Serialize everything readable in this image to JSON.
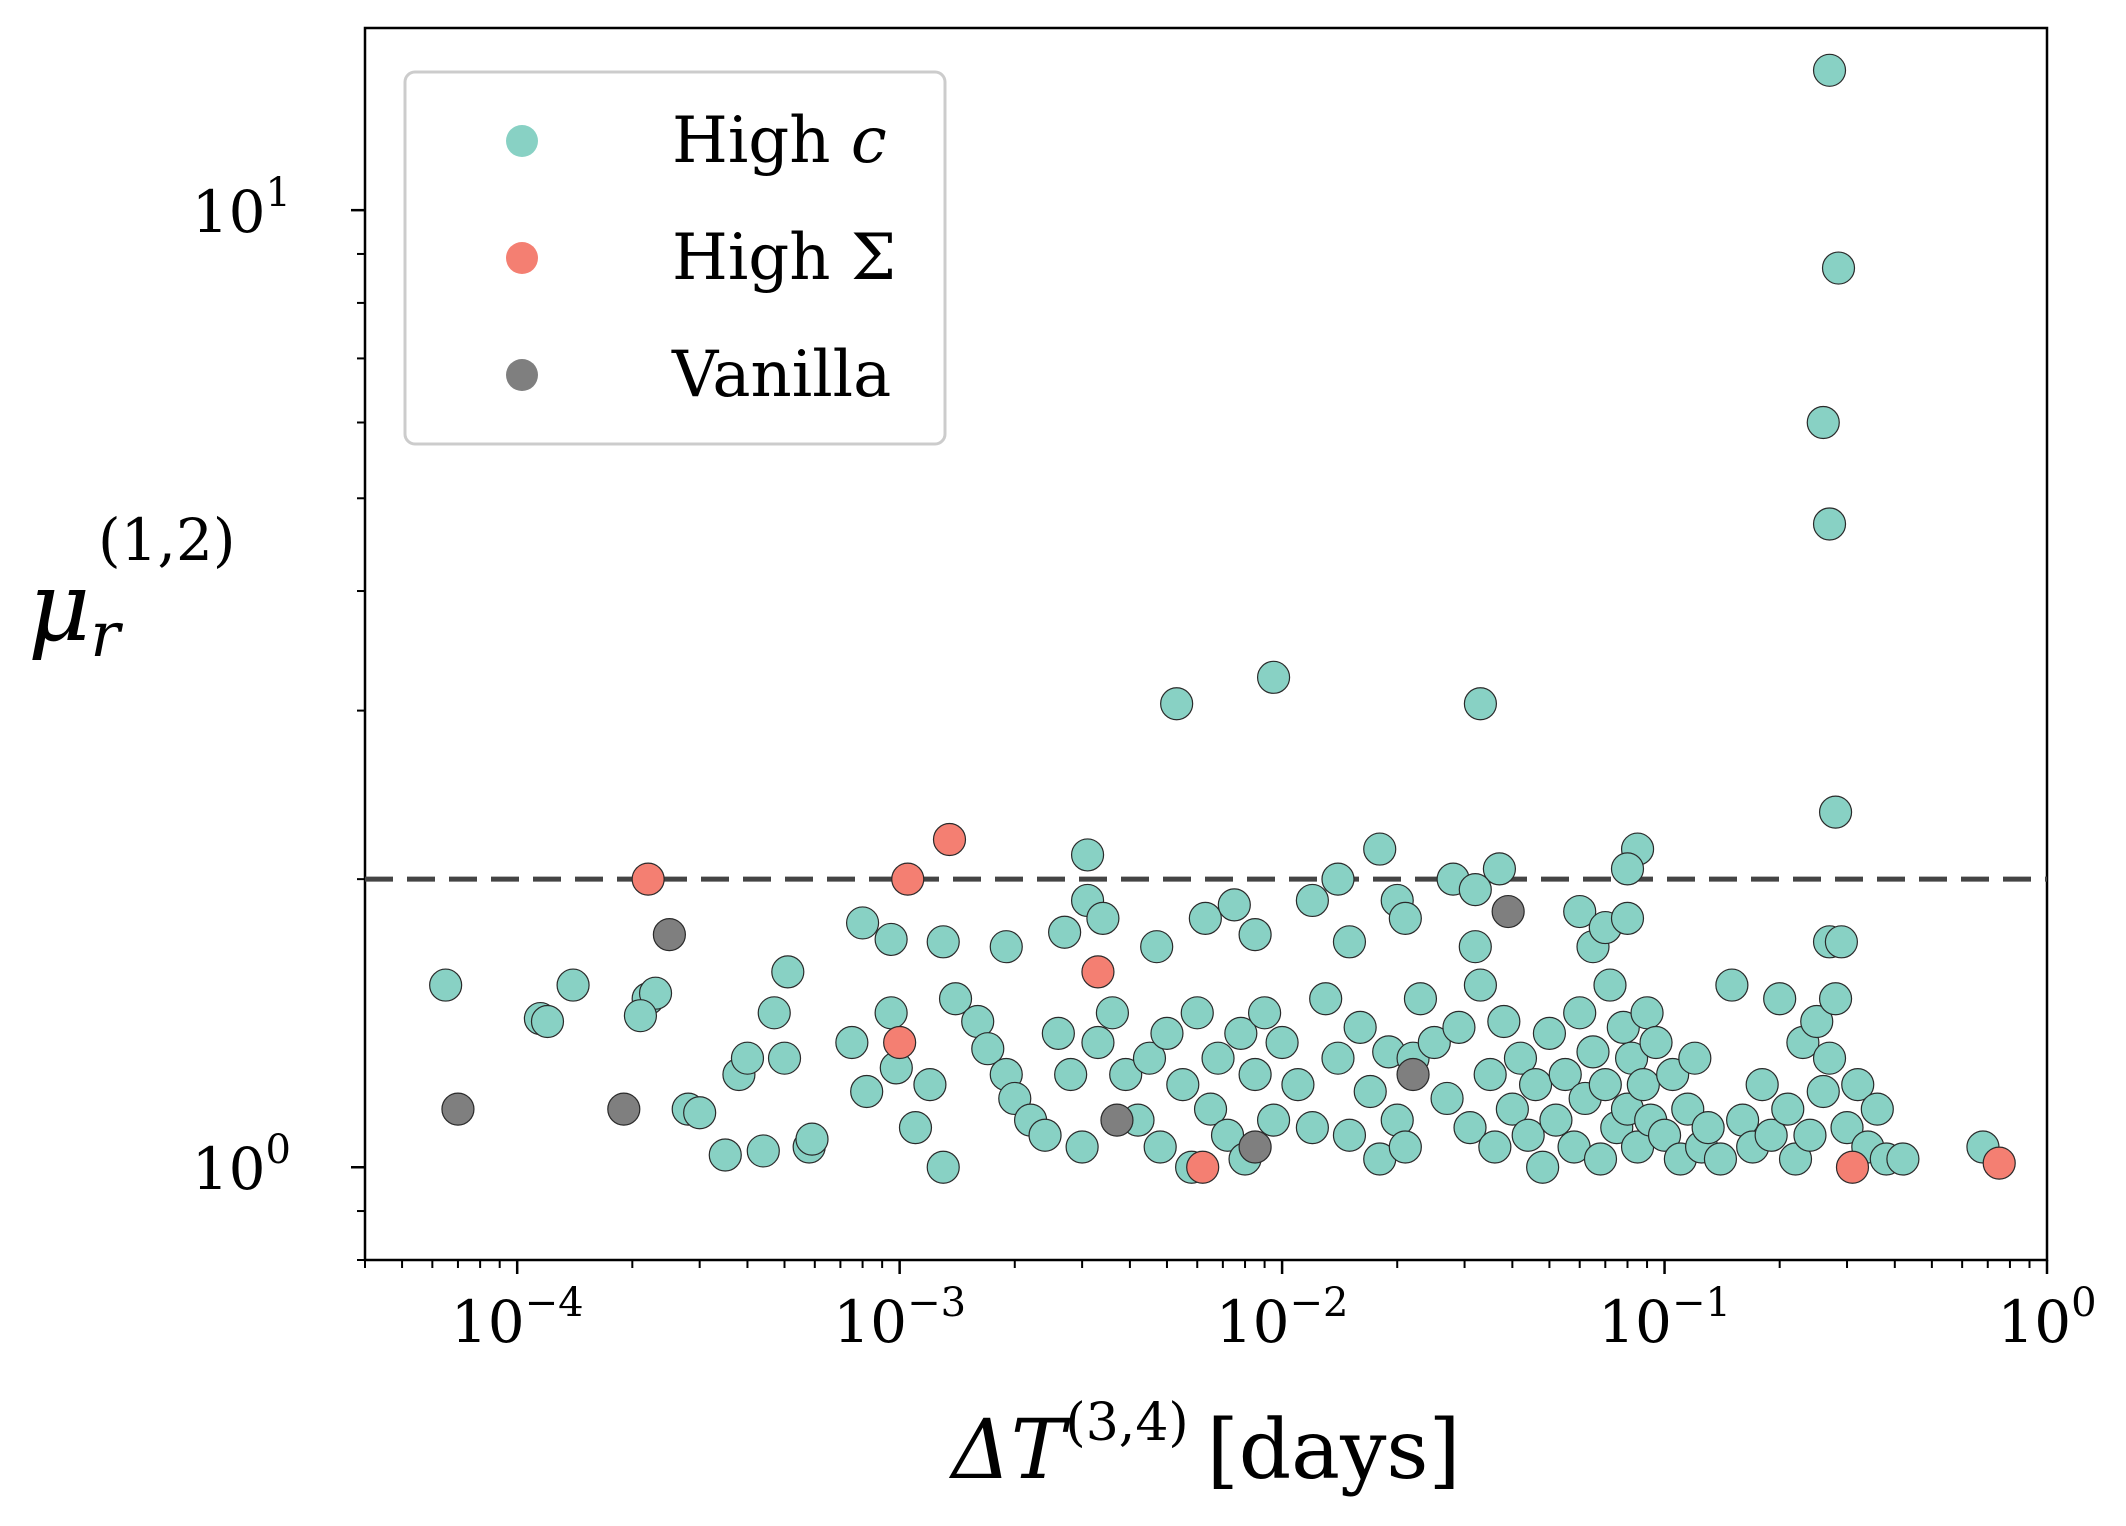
{
  "chart_data": {
    "type": "scatter",
    "x_scale": "log",
    "y_scale": "log",
    "xlim": [
      4e-05,
      1.0
    ],
    "ylim": [
      0.8,
      15.5
    ],
    "x_ticks": [
      {
        "value": 0.0001,
        "base": "10",
        "exp": "−4"
      },
      {
        "value": 0.001,
        "base": "10",
        "exp": "−3"
      },
      {
        "value": 0.01,
        "base": "10",
        "exp": "−2"
      },
      {
        "value": 0.1,
        "base": "10",
        "exp": "−1"
      },
      {
        "value": 1.0,
        "base": "10",
        "exp": "0"
      }
    ],
    "y_ticks": [
      {
        "value": 1.0,
        "base": "10",
        "exp": "0"
      },
      {
        "value": 10.0,
        "base": "10",
        "exp": "1"
      }
    ],
    "xlabel": {
      "prefix": "ΔT",
      "sup": "(3,4)",
      "unit": "[days]"
    },
    "ylabel": {
      "main": "μ",
      "sub": "r",
      "sup": "(1,2)"
    },
    "threshold": {
      "y": 2.0,
      "style": "dashed",
      "color": "#444444"
    },
    "legend": {
      "position": "top-left",
      "entries": [
        {
          "label": "High ",
          "italic_suffix": "c",
          "color": "#88d1c4"
        },
        {
          "label": "High Σ",
          "italic_suffix": "",
          "color": "#f47f72"
        },
        {
          "label": "Vanilla",
          "italic_suffix": "",
          "color": "#7f7f7f"
        }
      ]
    },
    "series": [
      {
        "name": "High c",
        "color": "#88d1c4",
        "points": [
          [
            0.27,
            14.0
          ],
          [
            0.285,
            8.7
          ],
          [
            0.26,
            6.0
          ],
          [
            0.27,
            4.7
          ],
          [
            0.28,
            2.35
          ],
          [
            0.0053,
            3.05
          ],
          [
            0.0095,
            3.25
          ],
          [
            0.033,
            3.05
          ],
          [
            0.0031,
            2.12
          ],
          [
            0.018,
            2.15
          ],
          [
            0.037,
            2.05
          ],
          [
            0.085,
            2.15
          ],
          [
            0.08,
            2.05
          ],
          [
            0.014,
            2.0
          ],
          [
            0.028,
            2.0
          ],
          [
            0.032,
            1.95
          ],
          [
            0.02,
            1.9
          ],
          [
            0.06,
            1.85
          ],
          [
            0.0008,
            1.8
          ],
          [
            0.00095,
            1.73
          ],
          [
            0.0013,
            1.72
          ],
          [
            0.0019,
            1.7
          ],
          [
            0.0027,
            1.76
          ],
          [
            0.0031,
            1.9
          ],
          [
            0.0034,
            1.82
          ],
          [
            0.0047,
            1.7
          ],
          [
            0.0063,
            1.82
          ],
          [
            0.0075,
            1.88
          ],
          [
            0.0085,
            1.75
          ],
          [
            0.012,
            1.9
          ],
          [
            0.015,
            1.72
          ],
          [
            0.021,
            1.82
          ],
          [
            0.032,
            1.7
          ],
          [
            0.065,
            1.7
          ],
          [
            0.07,
            1.78
          ],
          [
            0.08,
            1.82
          ],
          [
            0.27,
            1.72
          ],
          [
            0.29,
            1.72
          ],
          [
            6.5e-05,
            1.55
          ],
          [
            0.000115,
            1.43
          ],
          [
            0.00012,
            1.42
          ],
          [
            0.00014,
            1.55
          ],
          [
            0.00022,
            1.5
          ],
          [
            0.00023,
            1.52
          ],
          [
            0.00021,
            1.44
          ],
          [
            0.00028,
            1.15
          ],
          [
            0.0003,
            1.14
          ],
          [
            0.00035,
            1.03
          ],
          [
            0.00038,
            1.25
          ],
          [
            0.0004,
            1.3
          ],
          [
            0.00044,
            1.04
          ],
          [
            0.00047,
            1.45
          ],
          [
            0.0005,
            1.3
          ],
          [
            0.00051,
            1.6
          ],
          [
            0.00058,
            1.05
          ],
          [
            0.00059,
            1.07
          ],
          [
            0.00075,
            1.35
          ],
          [
            0.00082,
            1.2
          ],
          [
            0.00095,
            1.45
          ],
          [
            0.00098,
            1.27
          ],
          [
            0.0011,
            1.1
          ],
          [
            0.0012,
            1.22
          ],
          [
            0.0013,
            1.0
          ],
          [
            0.0014,
            1.5
          ],
          [
            0.0016,
            1.42
          ],
          [
            0.0017,
            1.33
          ],
          [
            0.0019,
            1.25
          ],
          [
            0.002,
            1.18
          ],
          [
            0.0022,
            1.12
          ],
          [
            0.0024,
            1.08
          ],
          [
            0.0026,
            1.38
          ],
          [
            0.0028,
            1.25
          ],
          [
            0.003,
            1.05
          ],
          [
            0.0033,
            1.35
          ],
          [
            0.0036,
            1.45
          ],
          [
            0.0039,
            1.25
          ],
          [
            0.0042,
            1.12
          ],
          [
            0.0045,
            1.3
          ],
          [
            0.0048,
            1.05
          ],
          [
            0.005,
            1.38
          ],
          [
            0.0055,
            1.22
          ],
          [
            0.0058,
            1.0
          ],
          [
            0.006,
            1.45
          ],
          [
            0.0065,
            1.15
          ],
          [
            0.0068,
            1.3
          ],
          [
            0.0072,
            1.08
          ],
          [
            0.0078,
            1.38
          ],
          [
            0.008,
            1.02
          ],
          [
            0.0085,
            1.25
          ],
          [
            0.009,
            1.45
          ],
          [
            0.0095,
            1.12
          ],
          [
            0.01,
            1.35
          ],
          [
            0.011,
            1.22
          ],
          [
            0.012,
            1.1
          ],
          [
            0.013,
            1.5
          ],
          [
            0.014,
            1.3
          ],
          [
            0.015,
            1.08
          ],
          [
            0.016,
            1.4
          ],
          [
            0.017,
            1.2
          ],
          [
            0.018,
            1.02
          ],
          [
            0.019,
            1.32
          ],
          [
            0.02,
            1.12
          ],
          [
            0.021,
            1.05
          ],
          [
            0.022,
            1.3
          ],
          [
            0.023,
            1.5
          ],
          [
            0.025,
            1.35
          ],
          [
            0.027,
            1.18
          ],
          [
            0.029,
            1.4
          ],
          [
            0.031,
            1.1
          ],
          [
            0.033,
            1.55
          ],
          [
            0.035,
            1.25
          ],
          [
            0.036,
            1.05
          ],
          [
            0.038,
            1.42
          ],
          [
            0.04,
            1.15
          ],
          [
            0.042,
            1.3
          ],
          [
            0.044,
            1.08
          ],
          [
            0.046,
            1.22
          ],
          [
            0.048,
            1.0
          ],
          [
            0.05,
            1.38
          ],
          [
            0.052,
            1.12
          ],
          [
            0.055,
            1.25
          ],
          [
            0.058,
            1.05
          ],
          [
            0.06,
            1.45
          ],
          [
            0.062,
            1.18
          ],
          [
            0.065,
            1.32
          ],
          [
            0.068,
            1.02
          ],
          [
            0.07,
            1.22
          ],
          [
            0.072,
            1.55
          ],
          [
            0.075,
            1.1
          ],
          [
            0.078,
            1.4
          ],
          [
            0.08,
            1.15
          ],
          [
            0.082,
            1.3
          ],
          [
            0.085,
            1.05
          ],
          [
            0.088,
            1.22
          ],
          [
            0.09,
            1.45
          ],
          [
            0.092,
            1.12
          ],
          [
            0.095,
            1.35
          ],
          [
            0.1,
            1.08
          ],
          [
            0.105,
            1.25
          ],
          [
            0.11,
            1.02
          ],
          [
            0.115,
            1.15
          ],
          [
            0.12,
            1.3
          ],
          [
            0.125,
            1.05
          ],
          [
            0.13,
            1.1
          ],
          [
            0.14,
            1.02
          ],
          [
            0.15,
            1.55
          ],
          [
            0.16,
            1.12
          ],
          [
            0.17,
            1.05
          ],
          [
            0.18,
            1.22
          ],
          [
            0.19,
            1.08
          ],
          [
            0.2,
            1.5
          ],
          [
            0.21,
            1.15
          ],
          [
            0.22,
            1.02
          ],
          [
            0.23,
            1.35
          ],
          [
            0.24,
            1.08
          ],
          [
            0.25,
            1.42
          ],
          [
            0.26,
            1.2
          ],
          [
            0.27,
            1.3
          ],
          [
            0.28,
            1.5
          ],
          [
            0.3,
            1.1
          ],
          [
            0.32,
            1.22
          ],
          [
            0.34,
            1.05
          ],
          [
            0.36,
            1.15
          ],
          [
            0.38,
            1.02
          ],
          [
            0.42,
            1.02
          ],
          [
            0.68,
            1.05
          ]
        ]
      },
      {
        "name": "High Σ",
        "color": "#f47f72",
        "points": [
          [
            0.00022,
            2.0
          ],
          [
            0.00105,
            2.0
          ],
          [
            0.00135,
            2.2
          ],
          [
            0.0033,
            1.6
          ],
          [
            0.001,
            1.35
          ],
          [
            0.0062,
            1.0
          ],
          [
            0.31,
            1.0
          ],
          [
            0.75,
            1.01
          ]
        ]
      },
      {
        "name": "Vanilla",
        "color": "#7f7f7f",
        "points": [
          [
            7e-05,
            1.15
          ],
          [
            0.00019,
            1.15
          ],
          [
            0.00025,
            1.75
          ],
          [
            0.0037,
            1.12
          ],
          [
            0.0085,
            1.05
          ],
          [
            0.022,
            1.25
          ],
          [
            0.039,
            1.85
          ]
        ]
      }
    ]
  }
}
